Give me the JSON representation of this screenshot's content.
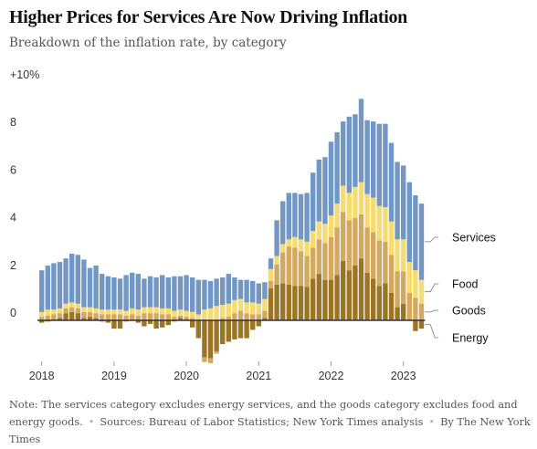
{
  "title": "Higher Prices for Services Are Now Driving Inflation",
  "subtitle": "Breakdown of the inflation rate, by category",
  "note": {
    "text": "Note: The services category excludes energy services, and the goods category excludes food and energy goods.",
    "sources": "Sources: Bureau of Labor Statistics; New York Times analysis",
    "byline": "By The New York Times"
  },
  "colors": {
    "services": "#7397c5",
    "food": "#f5dc72",
    "goods": "#d3a861",
    "energy": "#9a7526",
    "axis": "#333333",
    "tick_text": "#333333"
  },
  "chart_data": {
    "type": "bar",
    "stacked": true,
    "xlabel": "",
    "ylabel": "",
    "ylim": [
      -2,
      10
    ],
    "y_ticks": [
      0,
      2,
      4,
      6,
      8,
      10
    ],
    "y_tick_labels": [
      "0",
      "2",
      "4",
      "6",
      "8",
      "+10%"
    ],
    "x_tick_labels": [
      "2018",
      "2019",
      "2020",
      "2021",
      "2022",
      "2023"
    ],
    "x_tick_index": [
      0,
      12,
      24,
      36,
      48,
      60
    ],
    "grid": false,
    "legend": "direct labels at right end",
    "categories": [
      "Jan 2018",
      "Feb 2018",
      "Mar 2018",
      "Apr 2018",
      "May 2018",
      "Jun 2018",
      "Jul 2018",
      "Aug 2018",
      "Sep 2018",
      "Oct 2018",
      "Nov 2018",
      "Dec 2018",
      "Jan 2019",
      "Feb 2019",
      "Mar 2019",
      "Apr 2019",
      "May 2019",
      "Jun 2019",
      "Jul 2019",
      "Aug 2019",
      "Sep 2019",
      "Oct 2019",
      "Nov 2019",
      "Dec 2019",
      "Jan 2020",
      "Feb 2020",
      "Mar 2020",
      "Apr 2020",
      "May 2020",
      "Jun 2020",
      "Jul 2020",
      "Aug 2020",
      "Sep 2020",
      "Oct 2020",
      "Nov 2020",
      "Dec 2020",
      "Jan 2021",
      "Feb 2021",
      "Mar 2021",
      "Apr 2021",
      "May 2021",
      "Jun 2021",
      "Jul 2021",
      "Aug 2021",
      "Sep 2021",
      "Oct 2021",
      "Nov 2021",
      "Dec 2021",
      "Jan 2022",
      "Feb 2022",
      "Mar 2022",
      "Apr 2022",
      "May 2022",
      "Jun 2022",
      "Jul 2022",
      "Aug 2022",
      "Sep 2022",
      "Oct 2022",
      "Nov 2022",
      "Dec 2022",
      "Jan 2023",
      "Feb 2023",
      "Mar 2023",
      "Apr 2023"
    ],
    "series": [
      {
        "name": "Energy",
        "values": [
          -0.1,
          -0.05,
          0.05,
          0.1,
          0.3,
          0.35,
          0.3,
          0.1,
          0.15,
          0.1,
          -0.05,
          -0.1,
          -0.35,
          -0.35,
          -0.05,
          0.05,
          -0.1,
          -0.25,
          -0.15,
          -0.35,
          -0.3,
          -0.2,
          -0.05,
          0.1,
          0.05,
          -0.3,
          -0.75,
          -1.55,
          -1.6,
          -1.3,
          -1.0,
          -0.9,
          -0.8,
          -0.75,
          -0.75,
          -0.4,
          -0.25,
          0.1,
          1.35,
          1.5,
          1.55,
          1.5,
          1.45,
          1.45,
          1.4,
          1.75,
          1.95,
          1.7,
          1.7,
          1.9,
          2.5,
          2.1,
          2.3,
          2.6,
          2.0,
          1.75,
          1.45,
          1.55,
          1.15,
          0.55,
          0.7,
          0.05,
          -0.45,
          -0.35
        ]
      },
      {
        "name": "Goods",
        "values": [
          0.15,
          0.2,
          0.2,
          0.2,
          0.2,
          0.2,
          0.2,
          0.25,
          0.2,
          0.2,
          0.25,
          0.25,
          0.25,
          0.25,
          0.2,
          0.2,
          0.2,
          0.3,
          0.3,
          0.3,
          0.25,
          0.25,
          0.15,
          0.1,
          0.1,
          0.1,
          0.0,
          -0.2,
          -0.2,
          -0.1,
          0.1,
          0.15,
          0.3,
          0.4,
          0.3,
          0.25,
          0.25,
          0.3,
          0.3,
          0.85,
          1.3,
          1.6,
          1.6,
          1.45,
          1.3,
          1.3,
          1.45,
          1.55,
          1.8,
          2.0,
          2.05,
          2.1,
          2.0,
          1.85,
          1.9,
          1.95,
          1.9,
          1.75,
          1.6,
          1.5,
          1.35,
          1.1,
          0.95,
          0.7
        ]
      },
      {
        "name": "Food",
        "values": [
          0.2,
          0.25,
          0.2,
          0.2,
          0.2,
          0.2,
          0.2,
          0.2,
          0.2,
          0.2,
          0.2,
          0.2,
          0.2,
          0.2,
          0.2,
          0.25,
          0.25,
          0.25,
          0.25,
          0.25,
          0.25,
          0.25,
          0.25,
          0.25,
          0.25,
          0.25,
          0.25,
          0.45,
          0.5,
          0.6,
          0.55,
          0.55,
          0.55,
          0.5,
          0.45,
          0.5,
          0.45,
          0.5,
          0.5,
          0.35,
          0.35,
          0.3,
          0.45,
          0.5,
          0.6,
          0.7,
          0.75,
          0.8,
          0.9,
          1.0,
          1.1,
          1.15,
          1.3,
          1.35,
          1.4,
          1.45,
          1.45,
          1.45,
          1.4,
          1.35,
          1.35,
          1.3,
          1.15,
          1.0
        ]
      },
      {
        "name": "Services",
        "values": [
          1.75,
          1.85,
          1.95,
          1.95,
          1.9,
          2.05,
          2.05,
          2.0,
          1.65,
          1.8,
          1.5,
          1.4,
          1.35,
          1.3,
          1.5,
          1.5,
          1.5,
          1.2,
          1.3,
          1.25,
          1.4,
          1.3,
          1.45,
          1.4,
          1.5,
          1.45,
          1.45,
          1.25,
          1.15,
          1.15,
          1.15,
          1.25,
          0.95,
          0.8,
          0.95,
          0.9,
          0.85,
          0.7,
          0.45,
          1.5,
          1.8,
          1.95,
          1.85,
          1.9,
          2.05,
          2.45,
          2.6,
          2.8,
          3.1,
          3.0,
          2.7,
          3.2,
          3.05,
          3.5,
          3.1,
          3.2,
          3.45,
          3.5,
          3.3,
          3.25,
          3.1,
          3.35,
          3.15,
          3.2
        ]
      }
    ],
    "labels": [
      {
        "series": "Services",
        "text": "Services"
      },
      {
        "series": "Food",
        "text": "Food"
      },
      {
        "series": "Goods",
        "text": "Goods"
      },
      {
        "series": "Energy",
        "text": "Energy"
      }
    ]
  }
}
